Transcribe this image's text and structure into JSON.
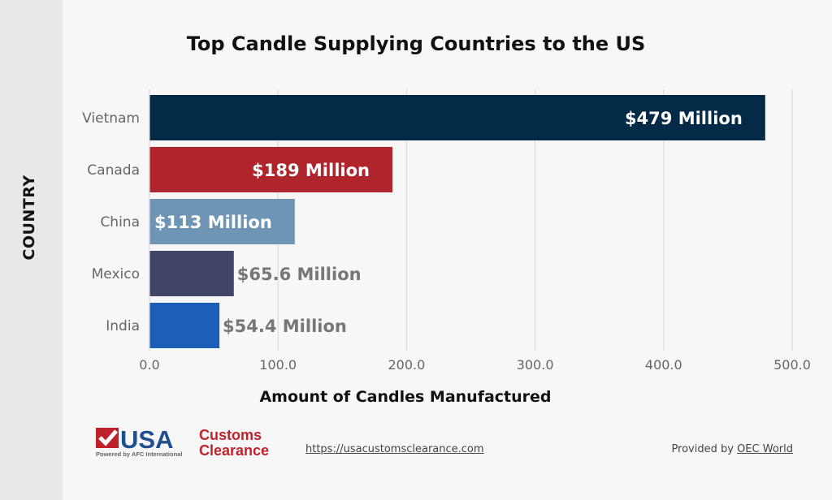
{
  "chart_data": {
    "type": "bar",
    "orientation": "horizontal",
    "title": "Top Candle Supplying Countries to the US",
    "xlabel": "Amount of Candles Manufactured",
    "ylabel": "COUNTRY",
    "categories": [
      "Vietnam",
      "Canada",
      "China",
      "Mexico",
      "India"
    ],
    "values": [
      479,
      189,
      113,
      65.6,
      54.4
    ],
    "data_labels": [
      "$479 Million",
      "$189 Million",
      "$113 Million",
      "$65.6 Million",
      "$54.4 Million"
    ],
    "colors": [
      "#032a47",
      "#b0242b",
      "#6f95b5",
      "#3f4468",
      "#1b5fb8"
    ],
    "xlim": [
      0,
      500
    ],
    "xticks": [
      "0.0",
      "100.0",
      "200.0",
      "300.0",
      "400.0",
      "500.0"
    ],
    "grid": true
  },
  "footer": {
    "logo_text": "USA Customs Clearance Powered by AFC International",
    "url": "https://usacustomsclearance.com",
    "provided_prefix": "Provided by ",
    "provided_link": "OEC World"
  }
}
